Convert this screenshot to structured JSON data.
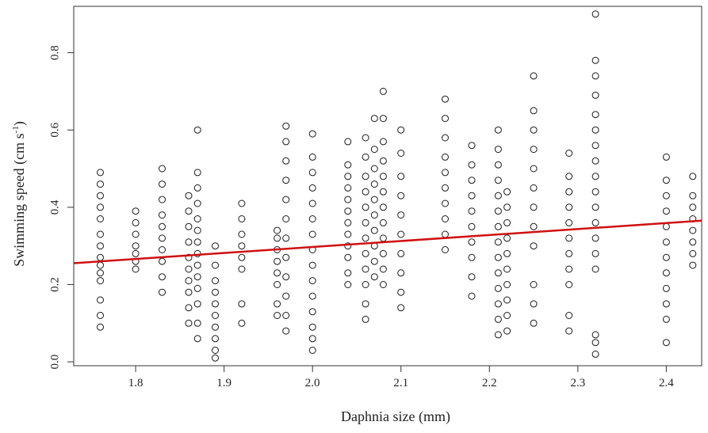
{
  "chart_data": {
    "type": "scatter",
    "xlabel": "Daphnia size (mm)",
    "ylabel_main": "Swimming speed (cm s",
    "ylabel_sup": "-1",
    "ylabel_close": ")",
    "xlim": [
      1.73,
      2.44
    ],
    "ylim": [
      -0.01,
      0.92
    ],
    "x_ticks": [
      1.8,
      1.9,
      2.0,
      2.1,
      2.2,
      2.3,
      2.4
    ],
    "x_tick_labels": [
      "1.8",
      "1.9",
      "2.0",
      "2.1",
      "2.2",
      "2.3",
      "2.4"
    ],
    "y_ticks": [
      0.0,
      0.2,
      0.4,
      0.6,
      0.8
    ],
    "y_tick_labels": [
      "0.0",
      "0.2",
      "0.4",
      "0.6",
      "0.8"
    ],
    "marker": "open-circle",
    "point_color": "#1a1a1a",
    "fit_color": "#d01010",
    "fit_line": {
      "slope": 0.155,
      "intercept": -0.0128
    },
    "groups": [
      {
        "x": 1.76,
        "y": [
          0.09,
          0.12,
          0.16,
          0.21,
          0.23,
          0.25,
          0.27,
          0.3,
          0.33,
          0.37,
          0.4,
          0.43,
          0.46,
          0.49
        ]
      },
      {
        "x": 1.8,
        "y": [
          0.24,
          0.26,
          0.28,
          0.3,
          0.33,
          0.36,
          0.39
        ]
      },
      {
        "x": 1.83,
        "y": [
          0.18,
          0.22,
          0.26,
          0.29,
          0.32,
          0.35,
          0.38,
          0.42,
          0.46,
          0.5
        ]
      },
      {
        "x": 1.86,
        "y": [
          0.1,
          0.14,
          0.18,
          0.21,
          0.24,
          0.27,
          0.31,
          0.35,
          0.39,
          0.43
        ]
      },
      {
        "x": 1.87,
        "y": [
          0.06,
          0.1,
          0.15,
          0.19,
          0.22,
          0.25,
          0.28,
          0.31,
          0.34,
          0.37,
          0.41,
          0.45,
          0.49,
          0.6
        ]
      },
      {
        "x": 1.89,
        "y": [
          0.01,
          0.03,
          0.06,
          0.09,
          0.12,
          0.15,
          0.18,
          0.21,
          0.25,
          0.3
        ]
      },
      {
        "x": 1.92,
        "y": [
          0.1,
          0.15,
          0.24,
          0.27,
          0.3,
          0.33,
          0.37,
          0.41
        ]
      },
      {
        "x": 1.96,
        "y": [
          0.12,
          0.15,
          0.2,
          0.23,
          0.26,
          0.29,
          0.32,
          0.34
        ]
      },
      {
        "x": 1.97,
        "y": [
          0.08,
          0.12,
          0.17,
          0.22,
          0.27,
          0.32,
          0.37,
          0.42,
          0.47,
          0.52,
          0.57,
          0.61
        ]
      },
      {
        "x": 2.0,
        "y": [
          0.03,
          0.06,
          0.09,
          0.13,
          0.17,
          0.21,
          0.25,
          0.29,
          0.33,
          0.37,
          0.41,
          0.45,
          0.49,
          0.53,
          0.59
        ]
      },
      {
        "x": 2.04,
        "y": [
          0.2,
          0.23,
          0.27,
          0.3,
          0.33,
          0.36,
          0.39,
          0.42,
          0.45,
          0.48,
          0.51,
          0.57
        ]
      },
      {
        "x": 2.06,
        "y": [
          0.11,
          0.15,
          0.2,
          0.24,
          0.28,
          0.32,
          0.36,
          0.4,
          0.44,
          0.48,
          0.53,
          0.58
        ]
      },
      {
        "x": 2.07,
        "y": [
          0.22,
          0.26,
          0.3,
          0.34,
          0.38,
          0.42,
          0.46,
          0.5,
          0.55,
          0.63
        ]
      },
      {
        "x": 2.08,
        "y": [
          0.2,
          0.24,
          0.28,
          0.32,
          0.36,
          0.4,
          0.44,
          0.48,
          0.52,
          0.57,
          0.63,
          0.7
        ]
      },
      {
        "x": 2.1,
        "y": [
          0.14,
          0.18,
          0.23,
          0.28,
          0.33,
          0.38,
          0.43,
          0.48,
          0.54,
          0.6
        ]
      },
      {
        "x": 2.15,
        "y": [
          0.29,
          0.33,
          0.37,
          0.41,
          0.45,
          0.49,
          0.53,
          0.58,
          0.63,
          0.68
        ]
      },
      {
        "x": 2.18,
        "y": [
          0.17,
          0.22,
          0.27,
          0.31,
          0.35,
          0.39,
          0.43,
          0.47,
          0.51,
          0.56
        ]
      },
      {
        "x": 2.21,
        "y": [
          0.07,
          0.11,
          0.15,
          0.19,
          0.23,
          0.27,
          0.31,
          0.35,
          0.39,
          0.43,
          0.47,
          0.51,
          0.55,
          0.6
        ]
      },
      {
        "x": 2.22,
        "y": [
          0.08,
          0.12,
          0.16,
          0.2,
          0.24,
          0.28,
          0.32,
          0.36,
          0.4,
          0.44
        ]
      },
      {
        "x": 2.25,
        "y": [
          0.1,
          0.15,
          0.2,
          0.3,
          0.35,
          0.4,
          0.45,
          0.5,
          0.55,
          0.6,
          0.65,
          0.74
        ]
      },
      {
        "x": 2.29,
        "y": [
          0.08,
          0.12,
          0.2,
          0.24,
          0.28,
          0.32,
          0.36,
          0.4,
          0.44,
          0.48,
          0.54
        ]
      },
      {
        "x": 2.32,
        "y": [
          0.02,
          0.05,
          0.07,
          0.24,
          0.28,
          0.32,
          0.36,
          0.4,
          0.44,
          0.48,
          0.52,
          0.56,
          0.6,
          0.64,
          0.69,
          0.74,
          0.78,
          0.9
        ]
      },
      {
        "x": 2.4,
        "y": [
          0.05,
          0.11,
          0.15,
          0.19,
          0.23,
          0.27,
          0.31,
          0.35,
          0.39,
          0.43,
          0.47,
          0.53
        ]
      },
      {
        "x": 2.43,
        "y": [
          0.25,
          0.28,
          0.31,
          0.34,
          0.37,
          0.4,
          0.43,
          0.48
        ]
      }
    ]
  }
}
